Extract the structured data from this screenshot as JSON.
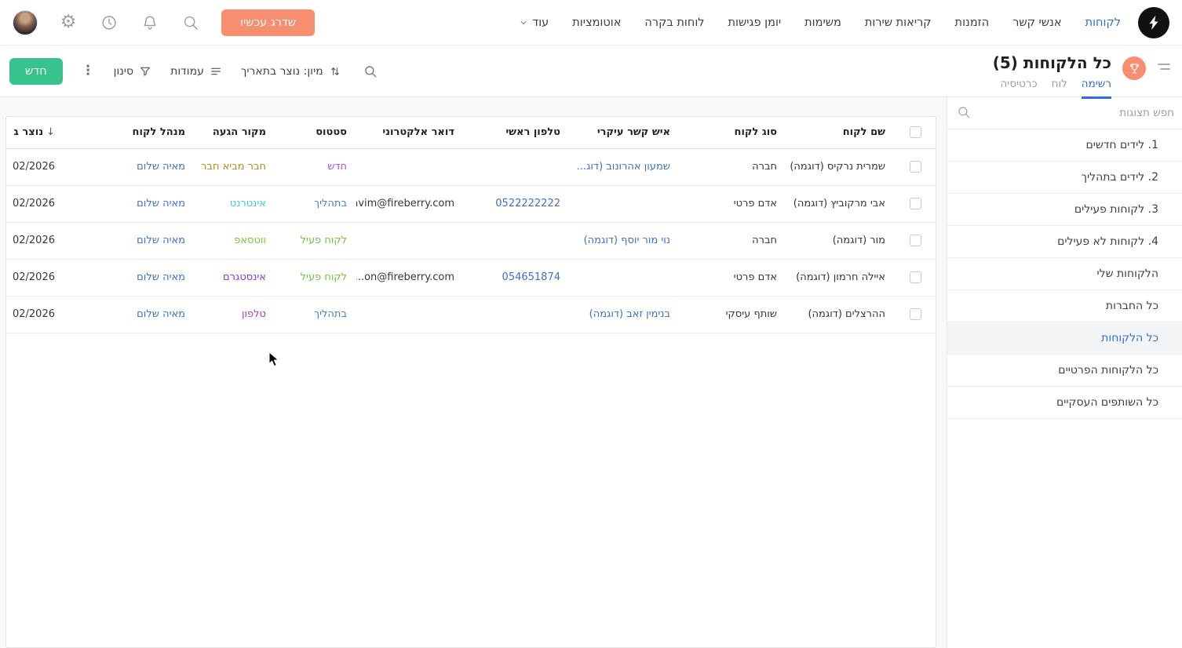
{
  "topbar": {
    "nav": [
      {
        "label": "לקוחות",
        "active": true
      },
      {
        "label": "אנשי קשר"
      },
      {
        "label": "הזמנות"
      },
      {
        "label": "קריאות שירות"
      },
      {
        "label": "משימות"
      },
      {
        "label": "יומן פגישות"
      },
      {
        "label": "לוחות בקרה"
      },
      {
        "label": "אוטומציות"
      },
      {
        "label": "עוד",
        "chevron": true
      }
    ],
    "upgrade_label": "שדרג עכשיו",
    "icons": [
      "search-icon",
      "bell-icon",
      "clock-icon",
      "gear-icon",
      "avatar"
    ]
  },
  "toolbar": {
    "title": "כל הלקוחות",
    "count": "(5)",
    "tabs": [
      {
        "label": "רשימה",
        "active": true
      },
      {
        "label": "לוח"
      },
      {
        "label": "כרטיסיה"
      }
    ],
    "new_label": "חדש",
    "filter_label": "סינון",
    "columns_label": "עמודות",
    "sort_label": "מיון: נוצר בתאריך",
    "icons": [
      "trophy-icon",
      "collapse-icon",
      "search-icon",
      "sort-icon",
      "columns-icon",
      "filter-icon",
      "kebab-icon"
    ]
  },
  "sidebar": {
    "search_placeholder": "חפש תצוגות",
    "items": [
      {
        "label": "1. לידים חדשים"
      },
      {
        "label": "2. לידים בתהליך"
      },
      {
        "label": "3. לקוחות פעילים"
      },
      {
        "label": "4. לקוחות לא פעילים"
      },
      {
        "label": "הלקוחות שלי"
      },
      {
        "label": "כל החברות"
      },
      {
        "label": "כל הלקוחות",
        "active": true
      },
      {
        "label": "כל הלקוחות הפרטיים"
      },
      {
        "label": "כל השותפים העסקיים"
      }
    ]
  },
  "table": {
    "columns": [
      "שם לקוח",
      "סוג לקוח",
      "איש קשר עיקרי",
      "טלפון ראשי",
      "דואר אלקטרוני",
      "סטטוס",
      "מקור הגעה",
      "מנהל לקוח",
      "נוצר בתאריך"
    ],
    "rows": [
      {
        "name": "שמרית נרקיס (דוגמה)",
        "type": "חברה",
        "contact": "שמעון אהרונוב (דוג...",
        "phone": "",
        "email": "",
        "status": {
          "label": "חדש",
          "color": "#ae4fd8"
        },
        "source": {
          "label": "חבר מביא חבר",
          "color": "#a3921d"
        },
        "manager": "מאיה שלום",
        "created": "02/2026"
      },
      {
        "name": "אבי מרקוביץ (דוגמה)",
        "type": "אדם פרטי",
        "contact": "",
        "phone": "0522222222",
        "email": "avim@fireberry.com",
        "status": {
          "label": "בתהליך",
          "color": "#4a7bd5"
        },
        "source": {
          "label": "אינטרנט",
          "color": "#3fcfb2"
        },
        "manager": "מאיה שלום",
        "created": "02/2026"
      },
      {
        "name": "מור (דוגמה)",
        "type": "חברה",
        "contact": "נוי מור יוסף (דוגמה)",
        "phone": "",
        "email": "",
        "status": {
          "label": "לקוח פעיל",
          "color": "#72c144"
        },
        "source": {
          "label": "ווטסאפ",
          "color": "#7fc43c"
        },
        "manager": "מאיה שלום",
        "created": "02/2026"
      },
      {
        "name": "איילה חרמון (דוגמה)",
        "type": "אדם פרטי",
        "contact": "",
        "phone": "054651874",
        "email": "...on@fireberry.com",
        "status": {
          "label": "לקוח פעיל",
          "color": "#72c144"
        },
        "source": {
          "label": "אינסטגרם",
          "color": "#7f3be8"
        },
        "manager": "מאיה שלום",
        "created": "02/2026"
      },
      {
        "name": "ההרצלים (דוגמה)",
        "type": "שותף עיסקי",
        "contact": "בנימין זאב (דוגמה)",
        "phone": "",
        "email": "",
        "status": {
          "label": "בתהליך",
          "color": "#4a7bd5"
        },
        "source": {
          "label": "טלפון",
          "color": "#a83ae0"
        },
        "manager": "מאיה שלום",
        "created": "02/2026"
      }
    ]
  },
  "colors": {
    "accent_blue": "#2f6ce0",
    "link_blue": "#3d6fd1",
    "new_button_green": "#38c28d",
    "upgrade_salmon": "#f78e70"
  }
}
